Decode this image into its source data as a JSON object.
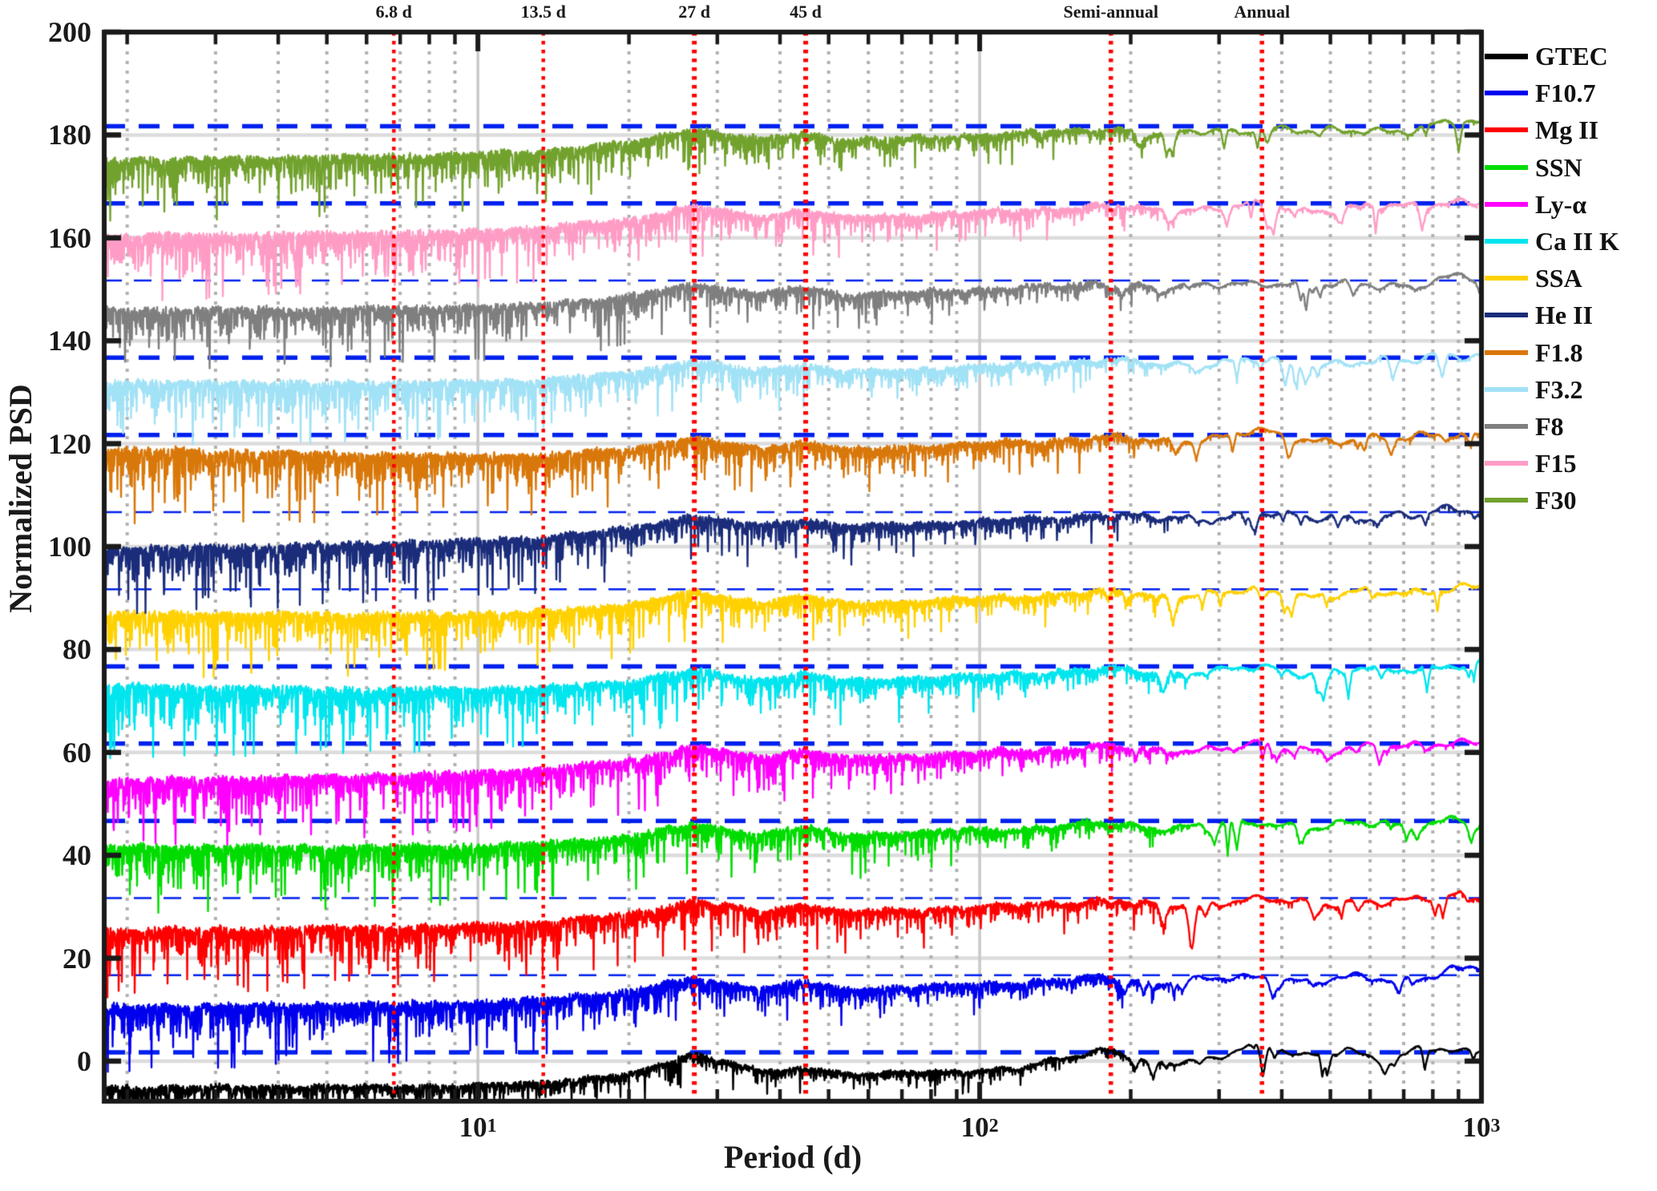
{
  "chart_data": {
    "type": "line",
    "title": "",
    "xlabel": "Period (d)",
    "ylabel": "Normalized PSD",
    "x_scale": "log",
    "x_range_days": [
      1.8,
      1000
    ],
    "y_range": [
      -7.8,
      200
    ],
    "grid_on": true,
    "legend_position": "right-outside",
    "y_ticks": [
      0,
      20,
      40,
      60,
      80,
      100,
      120,
      140,
      160,
      180,
      200
    ],
    "x_major_ticks": [
      {
        "value": 10,
        "base": "10",
        "exp": "1"
      },
      {
        "value": 100,
        "base": "10",
        "exp": "2"
      },
      {
        "value": 1000,
        "base": "10",
        "exp": "3"
      }
    ],
    "x_minor_tick_values": [
      2,
      3,
      4,
      5,
      6,
      7,
      8,
      9,
      20,
      30,
      40,
      50,
      60,
      70,
      80,
      90,
      200,
      300,
      400,
      500,
      600,
      700,
      800,
      900
    ],
    "period_markers": [
      {
        "label": "6.8 d",
        "days": 6.8,
        "weight": 4.5
      },
      {
        "label": "13.5 d",
        "days": 13.5,
        "weight": 4.5
      },
      {
        "label": "27 d",
        "days": 27,
        "weight": 6
      },
      {
        "label": "45 d",
        "days": 45,
        "weight": 6
      },
      {
        "label": "Semi-annual",
        "days": 182.6,
        "weight": 5.5
      },
      {
        "label": "Annual",
        "days": 365.25,
        "weight": 5.5
      }
    ],
    "marker_line_color": "#ff0000",
    "significance_line": {
      "color": "#0020ee",
      "style": "dashed",
      "offset_above_baseline": 1.7
    },
    "grid_colors": {
      "horizontal": "#dcdcdc",
      "vertical_major": "#c9c9c9",
      "vertical_minor": "#b0b0b0",
      "axis": "#1a1a1a"
    },
    "series_offset_step": 15,
    "series": [
      {
        "name": "gtec",
        "label": "GTEC",
        "color": "#000000",
        "offset": 0,
        "confidence_level": 1.7,
        "profile": "gtec",
        "seed": 11,
        "start_rel": -5.2,
        "amp_scale": 0.55,
        "end_lift": 0.5,
        "annual_boost": 0,
        "conf_thick": true
      },
      {
        "name": "f10-7",
        "label": "F10.7",
        "color": "#0000ee",
        "offset": 15,
        "confidence_level": 16.7,
        "profile": "solar",
        "seed": 22,
        "start_rel": -4.4,
        "amp_scale": 1.0,
        "end_lift": 1.3,
        "annual_boost": 0,
        "conf_thick": false
      },
      {
        "name": "mg-ii",
        "label": "Mg II",
        "color": "#ff0000",
        "offset": 30,
        "confidence_level": 31.7,
        "profile": "solar",
        "seed": 33,
        "start_rel": -4.6,
        "amp_scale": 1.0,
        "end_lift": 0.7,
        "annual_boost": 0,
        "conf_thick": false
      },
      {
        "name": "ssn",
        "label": "SSN",
        "color": "#00dc00",
        "offset": 45,
        "confidence_level": 46.7,
        "profile": "solar",
        "seed": 44,
        "start_rel": -3.3,
        "amp_scale": 1.05,
        "end_lift": 0.4,
        "annual_boost": 0,
        "conf_thick": true
      },
      {
        "name": "ly-alpha",
        "label": "Ly-α",
        "color": "#ff00ff",
        "offset": 60,
        "confidence_level": 61.7,
        "profile": "solar",
        "seed": 55,
        "start_rel": -5.5,
        "amp_scale": 1.05,
        "end_lift": 0.5,
        "annual_boost": 0,
        "conf_thick": true
      },
      {
        "name": "ca-ii-k",
        "label": "Ca II K",
        "color": "#00e5ee",
        "offset": 75,
        "confidence_level": 76.7,
        "profile": "solar",
        "seed": 66,
        "start_rel": -2.1,
        "amp_scale": 1.1,
        "end_lift": 0.7,
        "annual_boost": 0,
        "conf_thick": true
      },
      {
        "name": "ssa",
        "label": "SSA",
        "color": "#ffd100",
        "offset": 90,
        "confidence_level": 91.7,
        "profile": "solar",
        "seed": 77,
        "start_rel": -3.0,
        "amp_scale": 1.0,
        "end_lift": 0.6,
        "annual_boost": 0,
        "conf_thick": false
      },
      {
        "name": "he-ii",
        "label": "He II",
        "color": "#1a2c7a",
        "offset": 105,
        "confidence_level": 106.7,
        "profile": "solar",
        "seed": 88,
        "start_rel": -5.3,
        "amp_scale": 1.0,
        "end_lift": 0.5,
        "annual_boost": 0,
        "conf_thick": false
      },
      {
        "name": "f1-8",
        "label": "F1.8",
        "color": "#d9780a",
        "offset": 120,
        "confidence_level": 121.7,
        "profile": "solar",
        "seed": 99,
        "start_rel": -1.0,
        "amp_scale": 1.15,
        "end_lift": 0.4,
        "annual_boost": 1.0,
        "conf_thick": true
      },
      {
        "name": "f3-2",
        "label": "F3.2",
        "color": "#a2e2f6",
        "offset": 135,
        "confidence_level": 136.7,
        "profile": "solar",
        "seed": 111,
        "start_rel": -3.0,
        "amp_scale": 1.0,
        "end_lift": 0.7,
        "annual_boost": 0,
        "conf_thick": true
      },
      {
        "name": "f8",
        "label": "F8",
        "color": "#7f7f7f",
        "offset": 150,
        "confidence_level": 151.7,
        "profile": "solar",
        "seed": 122,
        "start_rel": -4.0,
        "amp_scale": 0.95,
        "end_lift": 0.4,
        "annual_boost": 0,
        "conf_thick": false
      },
      {
        "name": "f15",
        "label": "F15",
        "color": "#ff9cc6",
        "offset": 165,
        "confidence_level": 166.7,
        "profile": "solar",
        "seed": 133,
        "start_rel": -4.6,
        "amp_scale": 1.0,
        "end_lift": 0.5,
        "annual_boost": 0,
        "conf_thick": true
      },
      {
        "name": "f30",
        "label": "F30",
        "color": "#72a22e",
        "offset": 180,
        "confidence_level": 181.7,
        "profile": "solar",
        "seed": 144,
        "start_rel": -4.8,
        "amp_scale": 1.0,
        "end_lift": 0.7,
        "annual_boost": 0,
        "conf_thick": true
      }
    ],
    "envelope_profiles": {
      "solar": [
        [
          0.2553,
          -5.6
        ],
        [
          0.6,
          -5.0
        ],
        [
          0.833,
          -4.5
        ],
        [
          1.0,
          -4.0
        ],
        [
          1.131,
          -3.3
        ],
        [
          1.3,
          -1.6
        ],
        [
          1.4314,
          1.1
        ],
        [
          1.5,
          0.0
        ],
        [
          1.56,
          -0.9
        ],
        [
          1.6532,
          0.4
        ],
        [
          1.73,
          -1.1
        ],
        [
          1.86,
          -0.7
        ],
        [
          2.0,
          -0.1
        ],
        [
          2.13,
          0.4
        ],
        [
          2.2614,
          1.3
        ],
        [
          2.36,
          0.3
        ],
        [
          2.47,
          0.9
        ],
        [
          2.5623,
          1.5
        ],
        [
          2.66,
          0.5
        ],
        [
          2.76,
          1.2
        ],
        [
          2.86,
          0.8
        ],
        [
          2.94,
          1.9
        ],
        [
          3.0,
          1.7
        ]
      ],
      "gtec": [
        [
          0.2553,
          -5.2
        ],
        [
          0.9,
          -5.0
        ],
        [
          1.1,
          -4.5
        ],
        [
          1.3,
          -2.8
        ],
        [
          1.4314,
          1.4
        ],
        [
          1.53,
          -1.3
        ],
        [
          1.6,
          -2.3
        ],
        [
          1.6532,
          -1.3
        ],
        [
          1.76,
          -2.7
        ],
        [
          1.92,
          -2.0
        ],
        [
          2.08,
          -1.5
        ],
        [
          2.2614,
          2.7
        ],
        [
          2.34,
          -0.9
        ],
        [
          2.46,
          0.3
        ],
        [
          2.5623,
          4.5
        ],
        [
          2.64,
          0.4
        ],
        [
          2.73,
          2.3
        ],
        [
          2.81,
          0.2
        ],
        [
          2.89,
          2.5
        ],
        [
          2.96,
          0.8
        ],
        [
          3.0,
          1.9
        ]
      ]
    }
  }
}
